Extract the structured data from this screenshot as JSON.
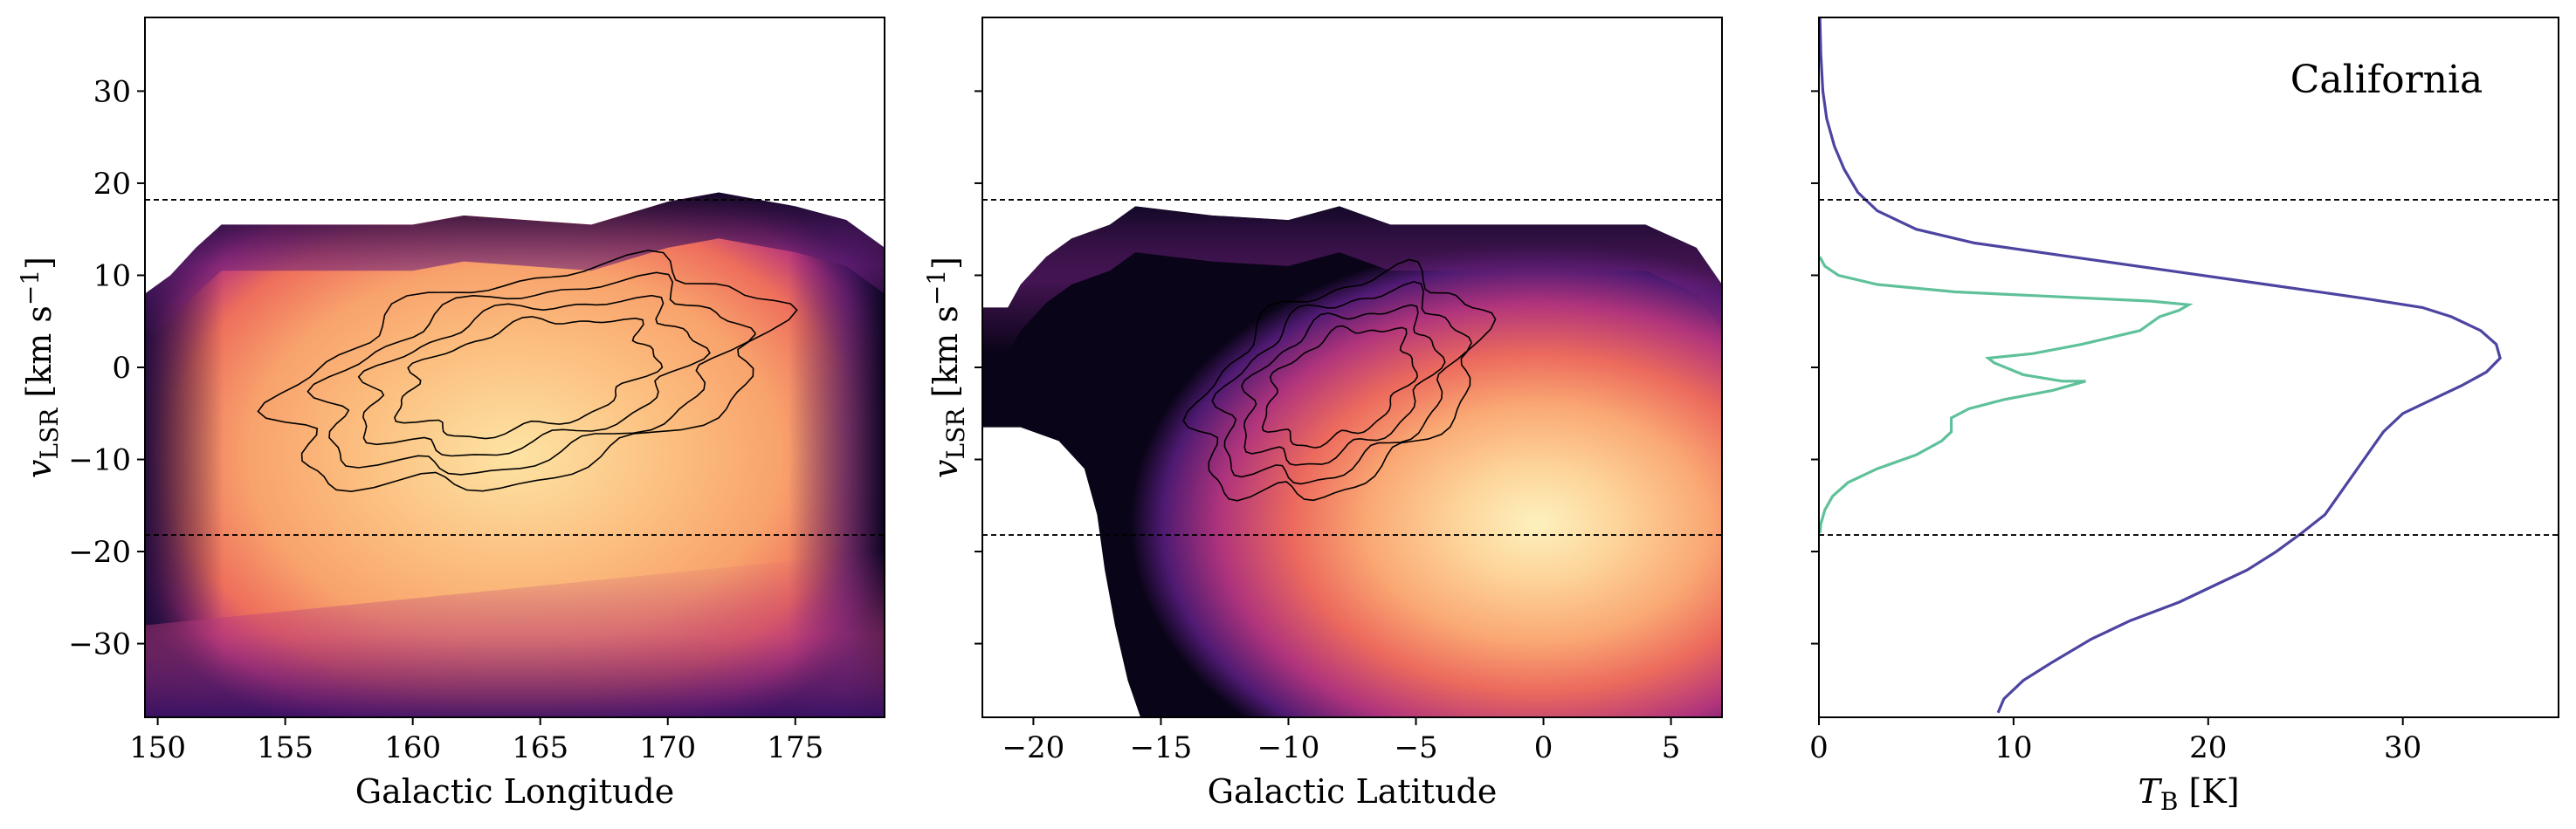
{
  "figure_label": "California",
  "chart_data": [
    {
      "type": "heatmap",
      "panel": "position-velocity (longitude)",
      "xlabel": "Galactic Longitude",
      "ylabel_parts": [
        "v",
        "LSR",
        " [km s",
        "−1",
        "]"
      ],
      "xlim": [
        149.5,
        178.5
      ],
      "ylim": [
        -38,
        38
      ],
      "xticks": [
        150,
        155,
        160,
        165,
        170,
        175
      ],
      "yticks": [
        -30,
        -20,
        -10,
        0,
        10,
        20,
        30
      ],
      "xtick_labels": [
        "150",
        "155",
        "160",
        "165",
        "170",
        "175"
      ],
      "ytick_labels": [
        "−30",
        "−20",
        "−10",
        "0",
        "10",
        "20",
        "30"
      ],
      "hlines": [
        18.2,
        -18.2
      ],
      "colormap": "magma",
      "emission_top_edge": [
        [
          149.5,
          8
        ],
        [
          150.5,
          10
        ],
        [
          151.5,
          13
        ],
        [
          152.5,
          15.5
        ],
        [
          160,
          15.5
        ],
        [
          162,
          16.5
        ],
        [
          167,
          15.5
        ],
        [
          170,
          18
        ],
        [
          172,
          19
        ],
        [
          175,
          17.5
        ],
        [
          177,
          16
        ],
        [
          178.5,
          13
        ]
      ],
      "contour_region": {
        "x": [
          155,
          174
        ],
        "y": [
          -12,
          10
        ]
      }
    },
    {
      "type": "heatmap",
      "panel": "position-velocity (latitude)",
      "xlabel": "Galactic Latitude",
      "ylabel_parts": [
        "v",
        "LSR",
        " [km s",
        "−1",
        "]"
      ],
      "xlim": [
        -22,
        7
      ],
      "ylim": [
        -38,
        38
      ],
      "xticks": [
        -20,
        -15,
        -10,
        -5,
        0,
        5
      ],
      "yticks": [
        -30,
        -20,
        -10,
        0,
        10,
        20,
        30
      ],
      "xtick_labels": [
        "−20",
        "−15",
        "−10",
        "−5",
        "0",
        "5"
      ],
      "hlines": [
        18.2,
        -18.2
      ],
      "colormap": "magma",
      "contour_region": {
        "x": [
          -13.5,
          -2.5
        ],
        "y": [
          -13,
          9
        ]
      }
    },
    {
      "type": "line",
      "panel": "spectrum",
      "xlabel_parts": [
        "T",
        "B",
        " [K]"
      ],
      "xlim": [
        0,
        38
      ],
      "ylim": [
        -38,
        38
      ],
      "xticks": [
        0,
        10,
        20,
        30
      ],
      "xtick_labels": [
        "0",
        "10",
        "20",
        "30"
      ],
      "hlines": [
        18.2,
        -18.2
      ],
      "series": [
        {
          "color": "#4c44a0",
          "points": [
            [
              0.05,
              38
            ],
            [
              0.1,
              34
            ],
            [
              0.2,
              30
            ],
            [
              0.4,
              27
            ],
            [
              0.8,
              24
            ],
            [
              1.3,
              21.5
            ],
            [
              2,
              19
            ],
            [
              3,
              17
            ],
            [
              5,
              15
            ],
            [
              8,
              13.5
            ],
            [
              13,
              12
            ],
            [
              18,
              10.5
            ],
            [
              23,
              9
            ],
            [
              28,
              7.5
            ],
            [
              31,
              6.5
            ],
            [
              32.5,
              5.5
            ],
            [
              34,
              4
            ],
            [
              34.8,
              2.5
            ],
            [
              35,
              1
            ],
            [
              34.3,
              -0.5
            ],
            [
              33,
              -2
            ],
            [
              31.5,
              -3.5
            ],
            [
              30,
              -5
            ],
            [
              29,
              -7
            ],
            [
              28,
              -10
            ],
            [
              27,
              -13
            ],
            [
              26,
              -16
            ],
            [
              24.8,
              -18
            ],
            [
              23.5,
              -20
            ],
            [
              22,
              -22
            ],
            [
              20.5,
              -23.5
            ],
            [
              18.5,
              -25.5
            ],
            [
              16,
              -27.5
            ],
            [
              14,
              -29.5
            ],
            [
              12,
              -32
            ],
            [
              10.5,
              -34
            ],
            [
              9.5,
              -36
            ],
            [
              9.2,
              -37.5
            ]
          ]
        },
        {
          "color": "#5fc19a",
          "points": [
            [
              0.05,
              12
            ],
            [
              0.3,
              11
            ],
            [
              1,
              10
            ],
            [
              3,
              9
            ],
            [
              7,
              8.2
            ],
            [
              11,
              7.8
            ],
            [
              14,
              7.5
            ],
            [
              17,
              7.2
            ],
            [
              19,
              6.8
            ],
            [
              18.5,
              6.2
            ],
            [
              17.5,
              5.5
            ],
            [
              16.5,
              4
            ],
            [
              13.5,
              2.5
            ],
            [
              11,
              1.5
            ],
            [
              8.7,
              1
            ],
            [
              9,
              0.5
            ],
            [
              10.5,
              -0.8
            ],
            [
              12.5,
              -1.5
            ],
            [
              13.7,
              -1.5
            ],
            [
              12,
              -2.5
            ],
            [
              9.5,
              -3.5
            ],
            [
              7.7,
              -4.5
            ],
            [
              6.8,
              -5.5
            ],
            [
              6.8,
              -7
            ],
            [
              6.3,
              -8
            ],
            [
              5,
              -9.5
            ],
            [
              3,
              -11
            ],
            [
              1.5,
              -12.5
            ],
            [
              0.7,
              -14
            ],
            [
              0.3,
              -15.5
            ],
            [
              0.1,
              -17
            ],
            [
              0.05,
              -18
            ]
          ]
        }
      ]
    }
  ]
}
